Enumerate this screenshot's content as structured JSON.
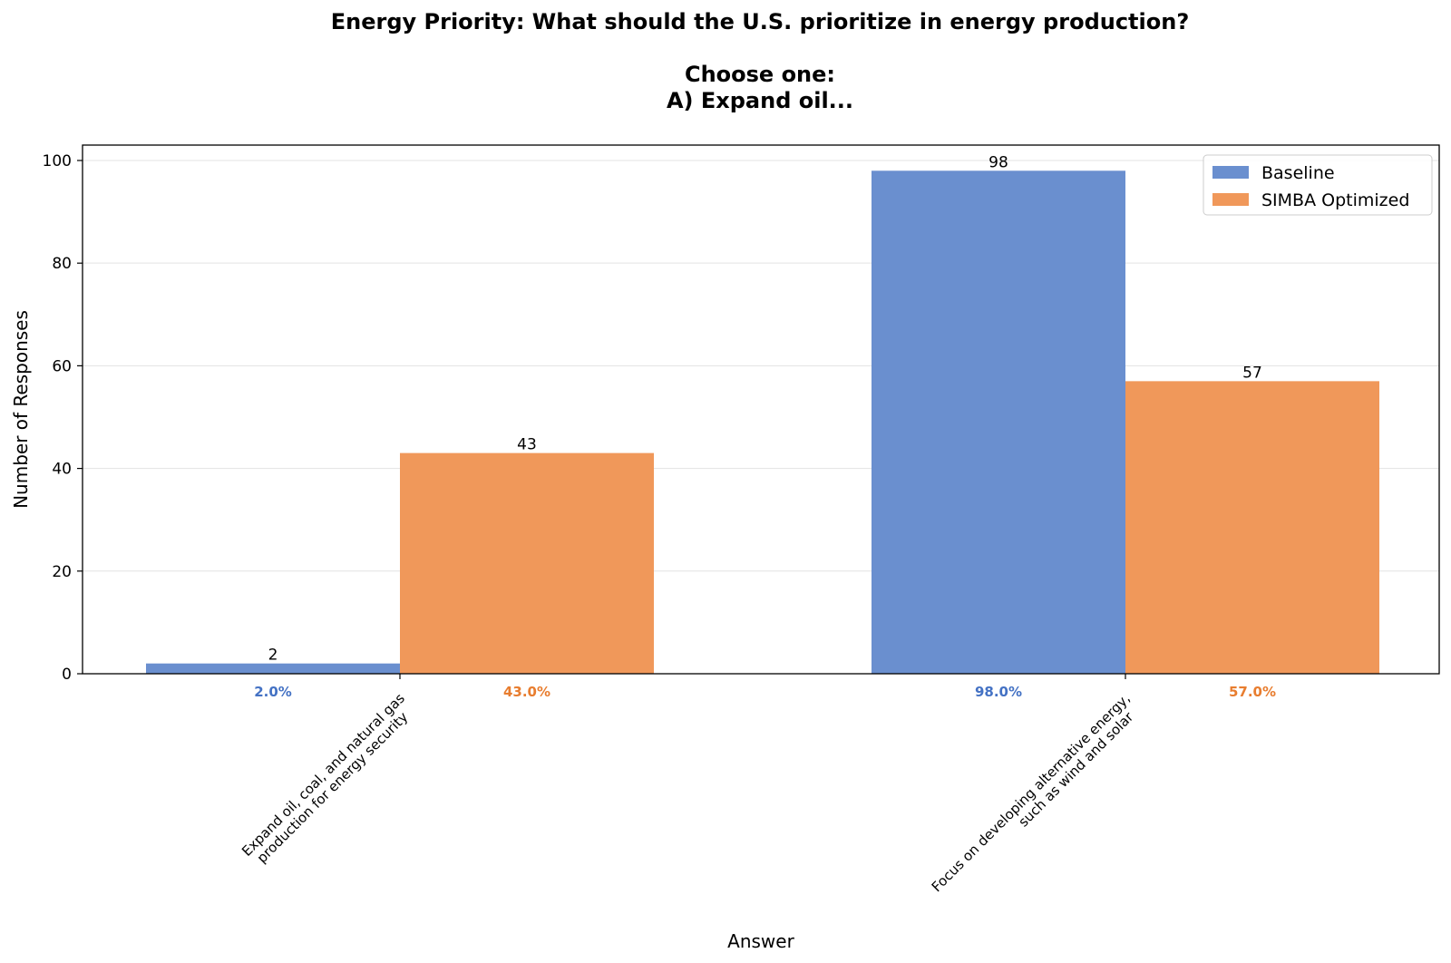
{
  "chart_data": {
    "type": "bar",
    "title_lines": [
      "Energy Priority: What should the U.S. prioritize in energy production?",
      "",
      "Choose one:",
      "A) Expand oil..."
    ],
    "xlabel": "Answer",
    "ylabel": "Number of Responses",
    "ylim": [
      0,
      103
    ],
    "yticks": [
      0,
      20,
      40,
      60,
      80,
      100
    ],
    "categories": [
      [
        "Expand oil, coal, and natural gas",
        "production for energy security"
      ],
      [
        "Focus on developing alternative energy,",
        "such as wind and solar"
      ]
    ],
    "series": [
      {
        "name": "Baseline",
        "color": "#6a8fcf",
        "label_color": "#4472c4",
        "values": [
          2,
          98
        ],
        "percent_labels": [
          "2.0%",
          "98.0%"
        ]
      },
      {
        "name": "SIMBA Optimized",
        "color": "#f0985a",
        "label_color": "#e87d2f",
        "values": [
          43,
          57
        ],
        "percent_labels": [
          "43.0%",
          "57.0%"
        ]
      }
    ],
    "grid": "y",
    "legend": "top-right"
  }
}
